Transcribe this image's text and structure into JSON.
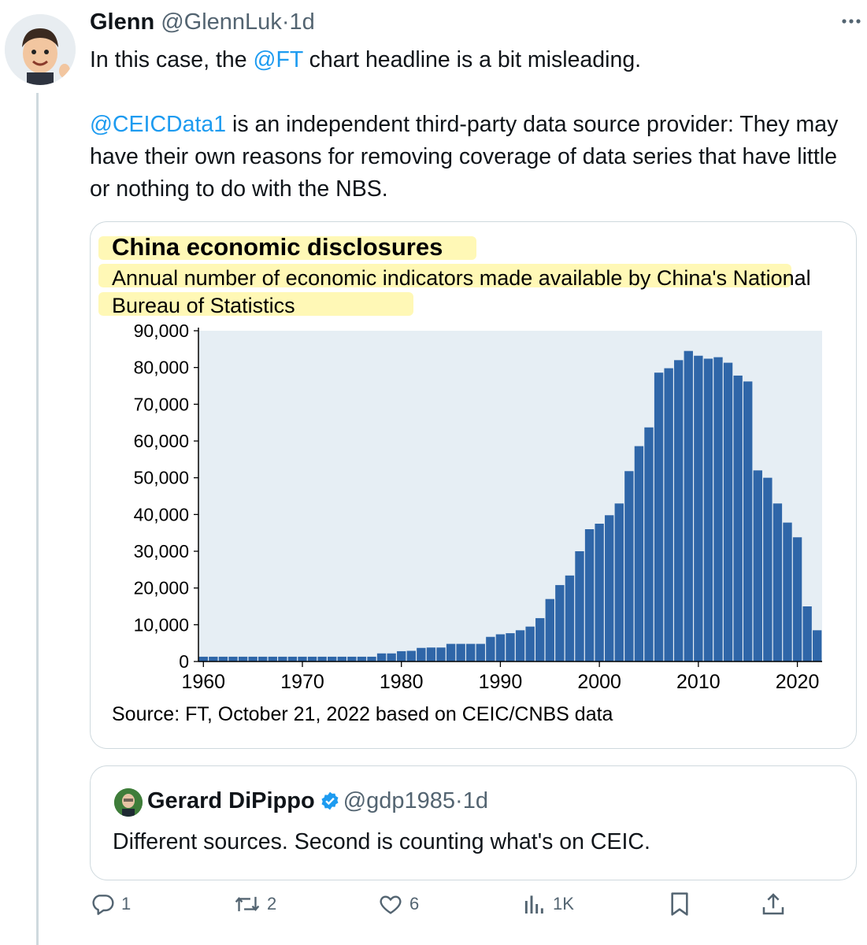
{
  "tweet": {
    "author_name": "Glenn",
    "author_handle": "@GlennLuk",
    "time": "1d",
    "text_parts": [
      "In this case, the ",
      "@FT",
      " chart headline is a bit misleading."
    ],
    "text2_parts": [
      "@CEICData1",
      " is an independent third-party data source provider: They may have their own reasons for removing coverage of data series that have little or nothing to do with the NBS."
    ]
  },
  "chart_data": {
    "type": "bar",
    "title": "China economic disclosures",
    "subtitle": "Annual number of economic indicators made available by China's National Bureau of Statistics",
    "source": "Source: FT, October 21, 2022 based on CEIC/CNBS data",
    "x": [
      1960,
      1961,
      1962,
      1963,
      1964,
      1965,
      1966,
      1967,
      1968,
      1969,
      1970,
      1971,
      1972,
      1973,
      1974,
      1975,
      1976,
      1977,
      1978,
      1979,
      1980,
      1981,
      1982,
      1983,
      1984,
      1985,
      1986,
      1987,
      1988,
      1989,
      1990,
      1991,
      1992,
      1993,
      1994,
      1995,
      1996,
      1997,
      1998,
      1999,
      2000,
      2001,
      2002,
      2003,
      2004,
      2005,
      2006,
      2007,
      2008,
      2009,
      2010,
      2011,
      2012,
      2013,
      2014,
      2015,
      2016,
      2017,
      2018,
      2019,
      2020,
      2021,
      2022
    ],
    "values": [
      1300,
      1300,
      1300,
      1300,
      1300,
      1300,
      1300,
      1300,
      1300,
      1300,
      1300,
      1300,
      1300,
      1300,
      1300,
      1300,
      1300,
      1300,
      2200,
      2200,
      2800,
      2900,
      3700,
      3800,
      3800,
      4800,
      4800,
      4800,
      4800,
      6700,
      7400,
      7700,
      8500,
      9500,
      11800,
      17000,
      20800,
      23400,
      30000,
      36000,
      37500,
      39800,
      43000,
      51800,
      58600,
      63700,
      78600,
      79800,
      82000,
      84500,
      83200,
      82400,
      82800,
      81300,
      77800,
      76200,
      52000,
      50000,
      43000,
      37800,
      33800,
      15000,
      8500
    ],
    "xlabel": "",
    "ylabel": "",
    "xticks": [
      "1960",
      "1970",
      "1980",
      "1990",
      "2000",
      "2010",
      "2020"
    ],
    "yticks": [
      "0",
      "10,000",
      "20,000",
      "30,000",
      "40,000",
      "50,000",
      "60,000",
      "70,000",
      "80,000",
      "90,000"
    ],
    "ylim": [
      0,
      90000
    ],
    "bar_color": "#2f66a8",
    "plot_background": "#e6eef4",
    "grid": false,
    "legend": "none"
  },
  "quote": {
    "author_name": "Gerard DiPippo",
    "author_handle": "@gdp1985",
    "time": "1d",
    "text": "Different sources. Second is counting what's on CEIC."
  },
  "actions": {
    "replies": "1",
    "reposts": "2",
    "likes": "6",
    "views": "1K"
  },
  "colors": {
    "link": "#1d9bf0",
    "muted": "#536471",
    "verified": "#1d9bf0",
    "highlight": "#fff59d"
  },
  "icons": [
    "reply-icon",
    "repost-icon",
    "like-icon",
    "views-icon",
    "bookmark-icon",
    "share-icon",
    "verified-badge-icon",
    "more-icon"
  ]
}
